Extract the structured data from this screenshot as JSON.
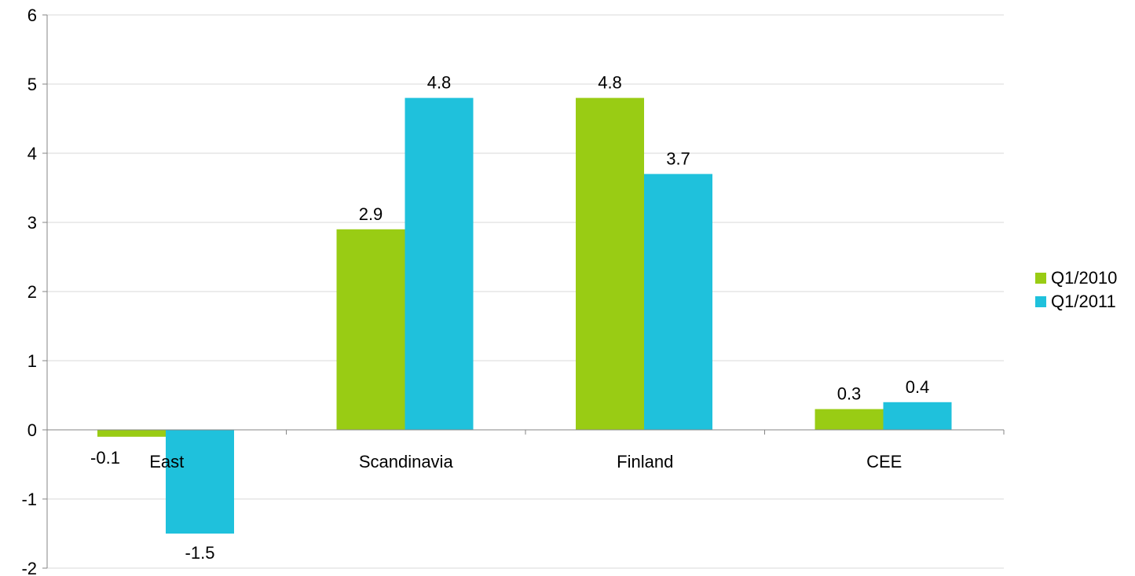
{
  "chart_data": {
    "type": "bar",
    "categories": [
      "East",
      "Scandinavia",
      "Finland",
      "CEE"
    ],
    "series": [
      {
        "name": "Q1/2010",
        "values": [
          -0.1,
          2.9,
          4.8,
          0.3
        ],
        "labels": [
          "-0.1",
          "2.9",
          "4.8",
          "0.3"
        ],
        "color": "#99CC14"
      },
      {
        "name": "Q1/2011",
        "values": [
          -1.5,
          4.8,
          3.7,
          0.4
        ],
        "labels": [
          "-1.5",
          "4.8",
          "3.7",
          "0.4"
        ],
        "color": "#1FC1DC"
      }
    ],
    "ylim": [
      -2,
      6
    ],
    "yticks": [
      -2,
      -1,
      0,
      1,
      2,
      3,
      4,
      5,
      6
    ],
    "ytick_labels": [
      "-2",
      "-1",
      "0",
      "1",
      "2",
      "3",
      "4",
      "5",
      "6"
    ],
    "grid": true,
    "gridline_color": "#D9D9D9",
    "axis_color": "#868686",
    "legend_position": "right",
    "title": "",
    "xlabel": "",
    "ylabel": ""
  }
}
